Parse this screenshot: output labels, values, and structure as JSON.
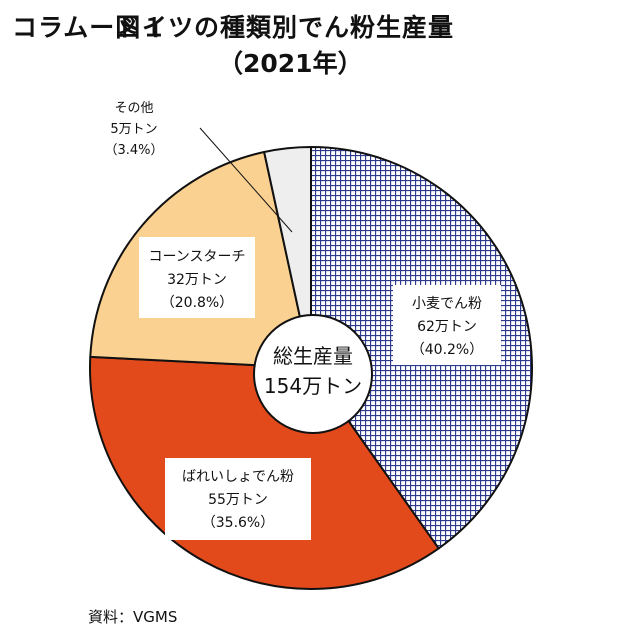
{
  "header": {
    "figure_no": "コラムー図１",
    "title": "ドイツの種類別でん粉生産量",
    "subtitle": "（2021年）"
  },
  "center": {
    "line1": "総生産量",
    "line2": "154万トン"
  },
  "source": "資料：VGMS",
  "colors": {
    "wheat": "#2e3a8c",
    "potato": "#e24a1b",
    "corn": "#fad191",
    "other": "#eeeeee",
    "outline": "#111111"
  },
  "chart_data": {
    "type": "pie",
    "title": "ドイツの種類別でん粉生産量",
    "subtitle": "（2021年）",
    "unit": "万トン",
    "total": 154,
    "start": "12 o'clock, clockwise",
    "slices": [
      {
        "name": "小麦でん粉",
        "value": 62,
        "percent": 40.2,
        "value_label": "62万トン",
        "percent_label": "（40.2%）",
        "fill": "crosshatch",
        "color": "#2e3a8c"
      },
      {
        "name": "ばれいしょでん粉",
        "value": 55,
        "percent": 35.6,
        "value_label": "55万トン",
        "percent_label": "（35.6%）",
        "fill": "solid",
        "color": "#e24a1b"
      },
      {
        "name": "コーンスターチ",
        "value": 32,
        "percent": 20.8,
        "value_label": "32万トン",
        "percent_label": "（20.8%）",
        "fill": "solid",
        "color": "#fad191"
      },
      {
        "name": "その他",
        "value": 5,
        "percent": 3.4,
        "value_label": "5万トン",
        "percent_label": "（3.4%）",
        "fill": "solid",
        "color": "#eeeeee"
      }
    ]
  }
}
